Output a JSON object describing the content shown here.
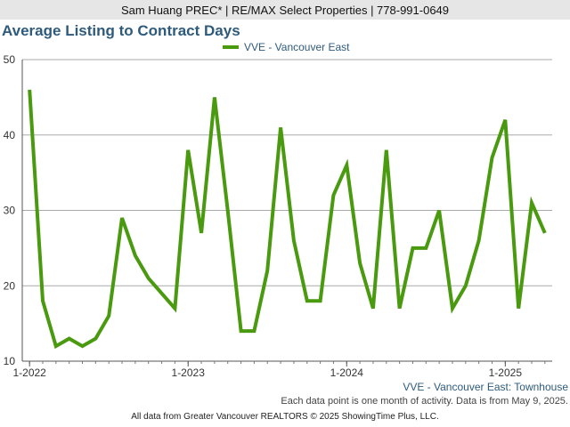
{
  "header": {
    "text": "Sam Huang PREC* | RE/MAX Select Properties | 778-991-0649"
  },
  "colors": {
    "series": "#4a9a10",
    "title": "#2e5b7c",
    "grid": "#aaaaaa",
    "header_bg": "#e6e6e6"
  },
  "chart_data": {
    "type": "line",
    "title": "Average Listing to Contract Days",
    "subtitle": "VVE - Vancouver East: Townhouse",
    "xlabel": "",
    "ylabel": "",
    "ylim": [
      10,
      50
    ],
    "yticks": [
      10,
      20,
      30,
      40,
      50
    ],
    "xlim": [
      "2022-01",
      "2025-05"
    ],
    "xticks": [
      {
        "label": "1-2022",
        "date": "2022-01"
      },
      {
        "label": "1-2023",
        "date": "2023-01"
      },
      {
        "label": "1-2024",
        "date": "2024-01"
      },
      {
        "label": "1-2025",
        "date": "2025-01"
      }
    ],
    "grid": "horizontal",
    "legend_position": "top",
    "series": [
      {
        "name": "VVE - Vancouver East",
        "x": [
          "2022-01",
          "2022-02",
          "2022-03",
          "2022-04",
          "2022-05",
          "2022-06",
          "2022-07",
          "2022-08",
          "2022-09",
          "2022-10",
          "2022-12",
          "2023-01",
          "2023-02",
          "2023-03",
          "2023-04",
          "2023-05",
          "2023-06",
          "2023-07",
          "2023-08",
          "2023-09",
          "2023-10",
          "2023-11",
          "2023-12",
          "2024-01",
          "2024-02",
          "2024-03",
          "2024-04",
          "2024-05",
          "2024-06",
          "2024-07",
          "2024-08",
          "2024-09",
          "2024-10",
          "2024-11",
          "2024-12",
          "2025-01",
          "2025-02",
          "2025-03",
          "2025-04"
        ],
        "values": [
          46,
          18,
          12,
          13,
          12,
          13,
          16,
          29,
          24,
          21,
          17,
          38,
          27,
          45,
          30,
          14,
          14,
          22,
          41,
          26,
          18,
          18,
          32,
          36,
          23,
          17,
          38,
          17,
          25,
          25,
          30,
          17,
          20,
          26,
          37,
          42,
          17,
          31,
          27
        ]
      }
    ]
  },
  "notes": {
    "activity": "Each data point is one month of activity. Data is from May 9, 2025.",
    "source": "All data from Greater Vancouver REALTORS © 2025 ShowingTime Plus, LLC."
  }
}
